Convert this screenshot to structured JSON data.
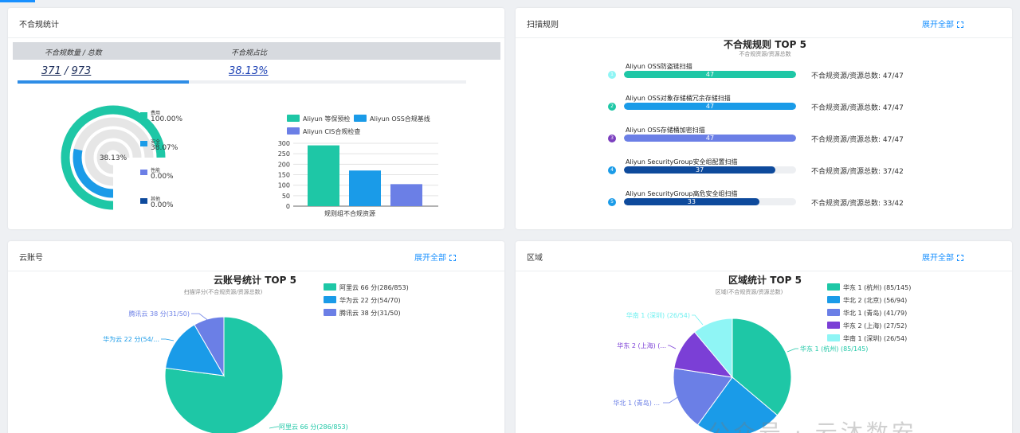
{
  "cards": {
    "noncompliance": {
      "title": "不合规统计",
      "count_label": "不合规数量 / 总数",
      "count_value": "371",
      "separator": "/",
      "total_value": "973",
      "ratio_label": "不合规占比",
      "ratio_value": "38.13%",
      "progress": 0.3813,
      "donut_center": "38.13%",
      "donut_legend": [
        {
          "name": "费用",
          "value": "100.00%",
          "color": "#1ec7a6"
        },
        {
          "name": "安全",
          "value": "38.07%",
          "color": "#1a9be8"
        },
        {
          "name": "性能",
          "value": "0.00%",
          "color": "#6b7fe6"
        },
        {
          "name": "其他",
          "value": "0.00%",
          "color": "#0e4a9c"
        }
      ]
    },
    "rules": {
      "title": "扫描规则",
      "expand_label": "展开全部",
      "chart_title": "不合规规则 TOP 5",
      "chart_subtitle": "不合规资源/资源总数",
      "items": [
        {
          "rank": "1",
          "name": "Aliyun OSS防盗链扫描",
          "value": 47,
          "total": 47,
          "stat": "不合规资源/资源总数: 47/47",
          "color": "#1ec7a6"
        },
        {
          "rank": "2",
          "name": "Aliyun OSS对象存储桶冗余存储扫描",
          "value": 47,
          "total": 47,
          "stat": "不合规资源/资源总数: 47/47",
          "color": "#1a9be8"
        },
        {
          "rank": "3",
          "name": "Aliyun OSS存储桶加密扫描",
          "value": 47,
          "total": 47,
          "stat": "不合规资源/资源总数: 47/47",
          "color": "#6b7fe6"
        },
        {
          "rank": "4",
          "name": "Aliyun SecurityGroup安全组配置扫描",
          "value": 37,
          "total": 42,
          "stat": "不合规资源/资源总数: 37/42",
          "color": "#0e4a9c"
        },
        {
          "rank": "5",
          "name": "Aliyun SecurityGroup高危安全组扫描",
          "value": 33,
          "total": 42,
          "stat": "不合规资源/资源总数: 33/42",
          "color": "#0e4a9c"
        }
      ],
      "dot_colors": [
        "#8ff5f5",
        "#1ec7a6",
        "#7b3fbf",
        "#1a9be8",
        "#1a9be8"
      ]
    },
    "accounts": {
      "title": "云账号",
      "expand_label": "展开全部",
      "chart_title": "云账号统计 TOP 5",
      "chart_subtitle": "扫描评分(不合规资源/资源总数)",
      "labels": [
        {
          "text": "阿里云 66 分(286/853)"
        },
        {
          "text": "华为云 22 分(54/..."
        },
        {
          "text": "腾讯云 38 分(31/50)"
        }
      ]
    },
    "regions": {
      "title": "区域",
      "expand_label": "展开全部",
      "chart_title": "区域统计 TOP 5",
      "chart_subtitle": "区域(不合规资源/资源总数)",
      "labels": [
        {
          "text": "华东 1 (杭州) (85/145)"
        },
        {
          "text": "华北 1 (青岛) ..."
        },
        {
          "text": "华东 2 (上海) (..."
        },
        {
          "text": "华南 1 (深圳) (26/54)"
        }
      ]
    }
  },
  "chart_data": [
    {
      "type": "bar",
      "legend": [
        "Aliyun 等保预检",
        "Aliyun OSS合规基线",
        "Aliyun CIS合规检查"
      ],
      "categories": [
        "Aliyun 等保预检",
        "Aliyun OSS合规基线",
        "Aliyun CIS合规检查"
      ],
      "values": [
        290,
        170,
        105
      ],
      "colors": [
        "#1ec7a6",
        "#1a9be8",
        "#6b7fe6"
      ],
      "xlabel": "规则组不合规资源",
      "ylim": [
        0,
        300
      ],
      "yticks": [
        "0",
        "50",
        "100",
        "150",
        "200",
        "250",
        "300"
      ],
      "grid": true
    },
    {
      "type": "pie",
      "title": "云账号统计 TOP 5",
      "series": [
        {
          "name": "阿里云 66 分(286/853)",
          "value": 286,
          "color": "#1ec7a6"
        },
        {
          "name": "华为云 22 分(54/70)",
          "value": 54,
          "color": "#1a9be8"
        },
        {
          "name": "腾讯云 38 分(31/50)",
          "value": 31,
          "color": "#6b7fe6"
        }
      ],
      "legend_placement": "top-right"
    },
    {
      "type": "pie",
      "title": "区域统计 TOP 5",
      "series": [
        {
          "name": "华东 1 (杭州)  (85/145)",
          "value": 85,
          "color": "#1ec7a6"
        },
        {
          "name": "华北 2 (北京)  (56/94)",
          "value": 56,
          "color": "#1a9be8"
        },
        {
          "name": "华北 1 (青岛)  (41/79)",
          "value": 41,
          "color": "#6b7fe6"
        },
        {
          "name": "华东 2 (上海)  (27/52)",
          "value": 27,
          "color": "#7b3fd6"
        },
        {
          "name": "华南 1 (深圳)  (26/54)",
          "value": 26,
          "color": "#8ff5f5"
        }
      ],
      "legend_placement": "top-right"
    }
  ],
  "watermark": "公众号 · 云沐数安"
}
